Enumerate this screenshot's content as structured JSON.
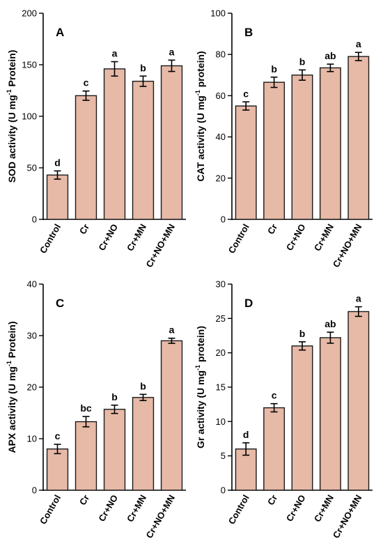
{
  "colors": {
    "bar_fill": "#e7b9a7",
    "bar_stroke": "#1a1a1a",
    "axis": "#000000"
  },
  "chart_data": [
    {
      "type": "bar",
      "panel": "A",
      "ylabel": {
        "pre": "SOD activity (U mg",
        "sup": "-1",
        "post": " Protein)"
      },
      "categories": [
        "Control",
        "Cr",
        "Cr+NO",
        "Cr+MN",
        "Cr+NO+MN"
      ],
      "values": [
        43,
        120,
        146,
        134,
        149
      ],
      "errors": [
        4,
        4.5,
        7,
        5,
        5.5
      ],
      "significance": [
        "d",
        "c",
        "a",
        "b",
        "a"
      ],
      "ylim": [
        0,
        200
      ],
      "yticks": [
        0,
        50,
        100,
        150,
        200
      ]
    },
    {
      "type": "bar",
      "panel": "B",
      "ylabel": {
        "pre": "CAT activity (U mg",
        "sup": "-1",
        "post": " protein)"
      },
      "categories": [
        "Control",
        "Cr",
        "Cr+NO",
        "Cr+MN",
        "Cr+NO+MN"
      ],
      "values": [
        55,
        66.5,
        70,
        73.5,
        79
      ],
      "errors": [
        2,
        2.5,
        2.5,
        1.8,
        2
      ],
      "significance": [
        "c",
        "b",
        "b",
        "ab",
        "a"
      ],
      "ylim": [
        0,
        100
      ],
      "yticks": [
        0,
        20,
        40,
        60,
        80,
        100
      ]
    },
    {
      "type": "bar",
      "panel": "C",
      "ylabel": {
        "pre": "APX activity (U mg",
        "sup": "-1",
        "post": " Protein)"
      },
      "categories": [
        "Control",
        "Cr",
        "Cr+NO",
        "Cr+MN",
        "Cr+NO+MN"
      ],
      "values": [
        8,
        13.3,
        15.7,
        18,
        29
      ],
      "errors": [
        0.9,
        1,
        0.8,
        0.6,
        0.5
      ],
      "significance": [
        "c",
        "bc",
        "b",
        "b",
        "a"
      ],
      "ylim": [
        0,
        40
      ],
      "yticks": [
        0,
        10,
        20,
        30,
        40
      ]
    },
    {
      "type": "bar",
      "panel": "D",
      "ylabel": {
        "pre": "Gr activity  (U mg",
        "sup": "-1",
        "post": " protein)"
      },
      "categories": [
        "Control",
        "Cr",
        "Cr+NO",
        "Cr+MN",
        "Cr+NO+MN"
      ],
      "values": [
        6,
        12,
        21,
        22.2,
        26
      ],
      "errors": [
        0.9,
        0.6,
        0.6,
        0.8,
        0.7
      ],
      "significance": [
        "d",
        "c",
        "b",
        "ab",
        "a"
      ],
      "ylim": [
        0,
        30
      ],
      "yticks": [
        0,
        5,
        10,
        15,
        20,
        25,
        30
      ]
    }
  ]
}
